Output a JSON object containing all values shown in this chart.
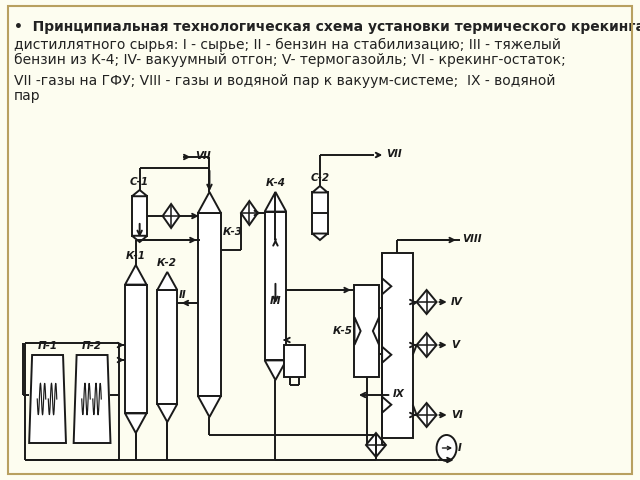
{
  "bg_color": "#fdfdf0",
  "border_color": "#b8a060",
  "text_color": "#222222",
  "line_color": "#1a1a1a",
  "title_line1": "•  Принципиальная технологическая схема установки термического крекинга",
  "title_line2": "дистиллятного сырья: I - сырье; II - бензин на стабилизацию; III - тяжелый",
  "title_line3": "бензин из К-4; IV- вакуумный отгон; V- термогазойль; VI - крекинг-остаток;",
  "title_line4": "VII -газы на ГФУ; VIII - газы и водяной пар к вакуум-системе;  IX - водяной",
  "title_line5": "пар",
  "fs": 10.0
}
